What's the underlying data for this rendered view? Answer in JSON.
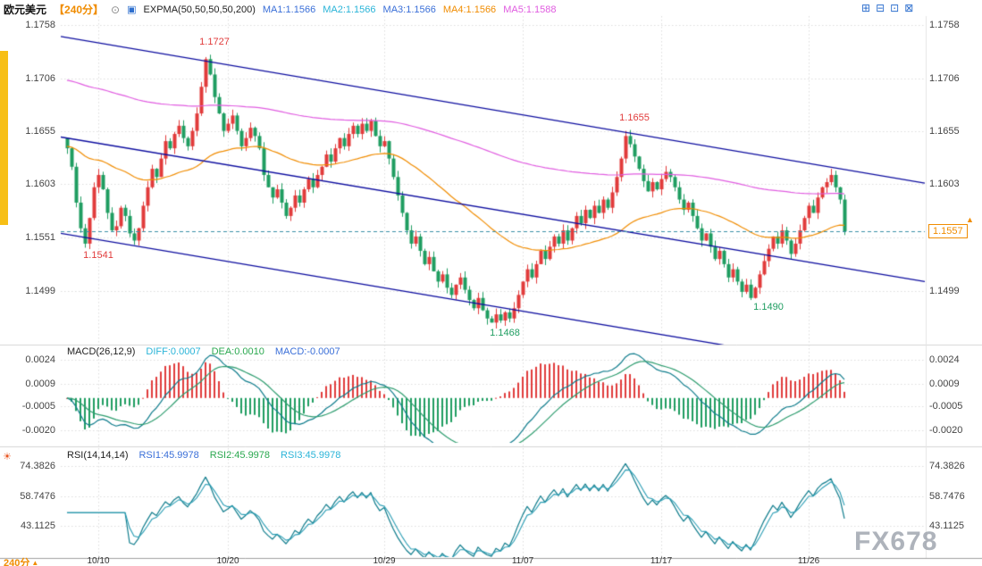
{
  "header": {
    "symbol": "欧元美元",
    "period": "【240分】",
    "camera_icon": "⊙",
    "indicator_icon": "▣",
    "indicator": "EXPMA(50,50,50,50,200)",
    "ma_labels": [
      {
        "text": "MA1:1.1566",
        "color": "#3a6fd8"
      },
      {
        "text": "MA2:1.1566",
        "color": "#2ab4d8"
      },
      {
        "text": "MA3:1.1566",
        "color": "#3a6fd8"
      },
      {
        "text": "MA4:1.1566",
        "color": "#f08c00"
      },
      {
        "text": "MA5:1.1588",
        "color": "#e05ce0"
      }
    ],
    "window_icons": [
      "⊞",
      "⊟",
      "⊡",
      "⊠"
    ]
  },
  "macd_header": {
    "title": "MACD(26,12,9)",
    "items": [
      {
        "text": "DIFF:0.0007",
        "color": "#2ab4d8"
      },
      {
        "text": "DEA:0.0010",
        "color": "#2aa84f"
      },
      {
        "text": "MACD:-0.0007",
        "color": "#3a6fd8"
      }
    ]
  },
  "rsi_header": {
    "icon": "☀",
    "title": "RSI(14,14,14)",
    "items": [
      {
        "text": "RSI1:45.9978",
        "color": "#3a6fd8"
      },
      {
        "text": "RSI2:45.9978",
        "color": "#2aa84f"
      },
      {
        "text": "RSI3:45.9978",
        "color": "#2ab4d8"
      }
    ]
  },
  "price_axis": {
    "labels_left": [
      "1.1758",
      "1.1706",
      "1.1655",
      "1.1603",
      "1.1551",
      "1.1499"
    ],
    "prices": [
      1.1758,
      1.1706,
      1.1655,
      1.1603,
      1.1551,
      1.1499
    ],
    "labels_right": [
      "1.1758",
      "1.1706",
      "1.1655",
      "1.1603",
      "1.1499"
    ],
    "prices_right": [
      1.1758,
      1.1706,
      1.1655,
      1.1603,
      1.1499
    ],
    "current_price": "1.1557",
    "current_value": 1.1557,
    "arrow_icon": "▲"
  },
  "macd_axis": {
    "labels": [
      "0.0024",
      "0.0009",
      "-0.0005",
      "-0.0020"
    ],
    "values": [
      0.0024,
      0.0009,
      -0.0005,
      -0.002
    ]
  },
  "rsi_axis": {
    "labels": [
      "74.3826",
      "58.7476",
      "43.1125"
    ],
    "values": [
      74.3826,
      58.7476,
      43.1125
    ]
  },
  "x_axis": {
    "period_label": "240分",
    "arrow": "▲",
    "dates": [
      {
        "label": "10/10",
        "idx": 7
      },
      {
        "label": "10/20",
        "idx": 36
      },
      {
        "label": "10/29",
        "idx": 71
      },
      {
        "label": "11/07",
        "idx": 102
      },
      {
        "label": "11/17",
        "idx": 133
      },
      {
        "label": "11/26",
        "idx": 166
      }
    ]
  },
  "watermark": "FX678",
  "chart_data": [
    {
      "type": "candlestick",
      "title": "欧元美元 【240分】",
      "x_tick_labels": [
        "10/10",
        "10/20",
        "10/29",
        "11/07",
        "11/17",
        "11/26"
      ],
      "y_tick_labels": [
        "1.1758",
        "1.1706",
        "1.1655",
        "1.1603",
        "1.1551",
        "1.1499"
      ],
      "ylim": [
        1.145,
        1.1767
      ],
      "first_open": 1.1648,
      "closes": [
        1.1638,
        1.162,
        1.1585,
        1.156,
        1.1545,
        1.157,
        1.16,
        1.1612,
        1.1598,
        1.1575,
        1.1558,
        1.1562,
        1.158,
        1.1572,
        1.1555,
        1.1548,
        1.156,
        1.1582,
        1.16,
        1.1618,
        1.161,
        1.1628,
        1.1645,
        1.1638,
        1.1652,
        1.166,
        1.1648,
        1.164,
        1.1655,
        1.1672,
        1.1698,
        1.1725,
        1.171,
        1.1688,
        1.1672,
        1.1655,
        1.1662,
        1.167,
        1.1655,
        1.164,
        1.1648,
        1.1658,
        1.165,
        1.1638,
        1.1612,
        1.16,
        1.159,
        1.1598,
        1.1585,
        1.1572,
        1.158,
        1.1592,
        1.1585,
        1.1598,
        1.1608,
        1.16,
        1.1612,
        1.162,
        1.1632,
        1.1625,
        1.1638,
        1.1648,
        1.164,
        1.1652,
        1.166,
        1.1652,
        1.1662,
        1.1655,
        1.1665,
        1.165,
        1.164,
        1.1645,
        1.1628,
        1.161,
        1.1592,
        1.1575,
        1.1558,
        1.1545,
        1.1552,
        1.1538,
        1.1525,
        1.1532,
        1.1518,
        1.1508,
        1.1515,
        1.1502,
        1.1495,
        1.1505,
        1.1512,
        1.15,
        1.149,
        1.1482,
        1.1492,
        1.148,
        1.1472,
        1.1468,
        1.1476,
        1.147,
        1.1478,
        1.1472,
        1.1482,
        1.1495,
        1.1508,
        1.152,
        1.1512,
        1.1525,
        1.1538,
        1.153,
        1.1542,
        1.1552,
        1.1545,
        1.1558,
        1.1548,
        1.156,
        1.1572,
        1.1565,
        1.1578,
        1.157,
        1.1582,
        1.1575,
        1.1588,
        1.158,
        1.1595,
        1.161,
        1.1628,
        1.165,
        1.1642,
        1.163,
        1.1618,
        1.1606,
        1.1596,
        1.1605,
        1.1598,
        1.1608,
        1.1615,
        1.161,
        1.16,
        1.1588,
        1.1578,
        1.1585,
        1.1572,
        1.156,
        1.1548,
        1.1555,
        1.1542,
        1.153,
        1.1538,
        1.1525,
        1.1512,
        1.152,
        1.1508,
        1.1498,
        1.1505,
        1.1492,
        1.1502,
        1.1515,
        1.1528,
        1.154,
        1.1552,
        1.1545,
        1.1558,
        1.1548,
        1.1535,
        1.1545,
        1.1558,
        1.157,
        1.1582,
        1.1575,
        1.159,
        1.16,
        1.1605,
        1.1612,
        1.16,
        1.1588,
        1.1557
      ],
      "wick_overrides": {
        "0": {
          "high": 1.1648
        },
        "4": {
          "low": 1.1541
        },
        "31": {
          "high": 1.1727
        },
        "95": {
          "low": 1.1468
        },
        "125": {
          "high": 1.1655
        },
        "153": {
          "low": 1.149
        }
      },
      "up_color": "#e13b3b",
      "down_color": "#1f9d61",
      "ema_periods": [
        50,
        200
      ],
      "ema_seeds": [
        1.164,
        1.1705
      ],
      "ema_colors": [
        "#f08c00",
        "#e05ce0"
      ],
      "trendline_color": "#0b0b9e",
      "trendlines": [
        {
          "p_left": 1.1747,
          "p_right": 1.1604
        },
        {
          "p_left": 1.1649,
          "p_right": 1.1508
        },
        {
          "p_left": 1.1555,
          "p_right": 1.1413
        }
      ],
      "current_price": 1.1557,
      "annotations": [
        {
          "text": "1.1727",
          "idx": 33,
          "price": 1.1742,
          "color": "#e13b3b"
        },
        {
          "text": "1.1655",
          "idx": 127,
          "price": 1.1668,
          "color": "#e13b3b"
        },
        {
          "text": "1.1541",
          "idx": 7,
          "price": 1.1534,
          "color": "#e13b3b"
        },
        {
          "text": "1.1468",
          "idx": 98,
          "price": 1.1458,
          "color": "#1f9d61"
        },
        {
          "text": "1.1490",
          "idx": 157,
          "price": 1.1483,
          "color": "#1f9d61"
        }
      ]
    },
    {
      "type": "macd",
      "params": [
        26,
        12,
        9
      ],
      "diff": 0.0007,
      "dea": 0.001,
      "macd": -0.0007,
      "ylim": [
        -0.00245,
        0.00265
      ],
      "y_tick_labels": [
        "0.0024",
        "0.0009",
        "-0.0005",
        "-0.0020"
      ],
      "hist_up_color": "#e13b3b",
      "hist_down_color": "#1f9d61",
      "diff_color": "#0f7c8c",
      "dea_color": "#2d9c6e"
    },
    {
      "type": "rsi",
      "period": 14,
      "values_final": [
        45.9978,
        45.9978,
        45.9978
      ],
      "ylim": [
        27.5,
        76.5
      ],
      "y_tick_labels": [
        "74.3826",
        "58.7476",
        "43.1125"
      ],
      "colors": [
        "#0f7c8c",
        "#2a9db4"
      ]
    }
  ]
}
